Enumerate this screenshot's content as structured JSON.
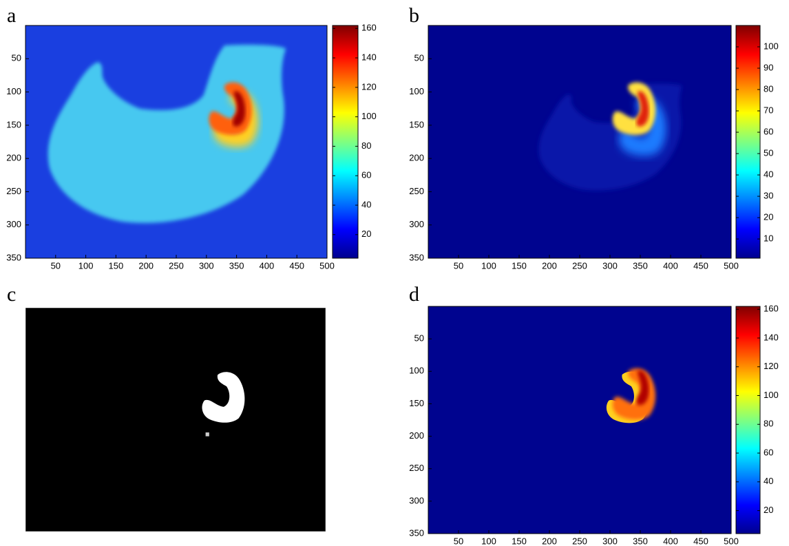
{
  "chart_data": [
    {
      "type": "heatmap",
      "label": "a",
      "colormap": "jet",
      "y_reversed": true,
      "xlim": [
        0,
        500
      ],
      "ylim": [
        0,
        350
      ],
      "xticks": [
        50,
        100,
        150,
        200,
        250,
        300,
        350,
        400,
        450,
        500
      ],
      "yticks": [
        50,
        100,
        150,
        200,
        250,
        300,
        350
      ],
      "clim": [
        4,
        162
      ],
      "cticks": [
        20,
        40,
        60,
        80,
        100,
        120,
        140,
        160
      ]
    },
    {
      "type": "heatmap",
      "label": "b",
      "colormap": "jet",
      "y_reversed": true,
      "xlim": [
        0,
        500
      ],
      "ylim": [
        0,
        350
      ],
      "xticks": [
        50,
        100,
        150,
        200,
        250,
        300,
        350,
        400,
        450,
        500
      ],
      "yticks": [
        50,
        100,
        150,
        200,
        250,
        300,
        350
      ],
      "clim": [
        1,
        110
      ],
      "cticks": [
        10,
        20,
        30,
        40,
        50,
        60,
        70,
        80,
        90,
        100
      ]
    },
    {
      "type": "mask",
      "label": "c"
    },
    {
      "type": "heatmap",
      "label": "d",
      "colormap": "jet",
      "y_reversed": true,
      "xlim": [
        0,
        500
      ],
      "ylim": [
        0,
        350
      ],
      "xticks": [
        50,
        100,
        150,
        200,
        250,
        300,
        350,
        400,
        450,
        500
      ],
      "yticks": [
        50,
        100,
        150,
        200,
        250,
        300,
        350
      ],
      "clim": [
        4,
        162
      ],
      "cticks": [
        20,
        40,
        60,
        80,
        100,
        120,
        140,
        160
      ]
    }
  ]
}
